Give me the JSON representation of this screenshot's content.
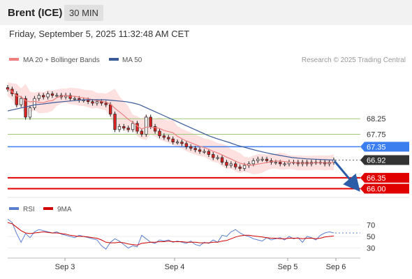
{
  "header": {
    "instrument": "Brent (ICE)",
    "timeframe": "30 MIN"
  },
  "timestamp": "Friday, September 5, 2025 11:32:48 AM CET",
  "legend": {
    "ma20": "MA 20 + Bollinger Bands",
    "ma50": "MA 50",
    "ma20_color": "#f08080",
    "ma50_color": "#3a5a9a",
    "rsi": "RSI",
    "rsi9": "9MA",
    "rsi_color": "#5a7fd0",
    "rsi9_color": "#d00000"
  },
  "research": "Research © 2025 Trading Central",
  "chart_data": {
    "type": "line",
    "price_levels": [
      {
        "label": "68.25",
        "value": 68.25,
        "kind": "thin",
        "color": "#a0c878"
      },
      {
        "label": "67.75",
        "value": 67.75,
        "kind": "thin",
        "color": "#a0c878"
      },
      {
        "label": "67.35",
        "value": 67.35,
        "kind": "pivot",
        "color": "#3a7ef0"
      },
      {
        "label": "66.92",
        "value": 66.92,
        "kind": "last",
        "color": "#333333"
      },
      {
        "label": "66.35",
        "value": 66.35,
        "kind": "target",
        "color": "#e00000"
      },
      {
        "label": "66.00",
        "value": 66.0,
        "kind": "target",
        "color": "#e00000"
      }
    ],
    "price_range": [
      65.9,
      69.6
    ],
    "x_labels": [
      "Sep 3",
      "Sep 4",
      "Sep 5",
      "Sep 6"
    ],
    "close_series": [
      69.2,
      69.05,
      68.7,
      68.9,
      68.3,
      68.6,
      68.9,
      69.0,
      68.95,
      69.05,
      69.0,
      69.0,
      68.95,
      69.0,
      68.9,
      68.9,
      68.85,
      68.85,
      68.8,
      68.75,
      68.8,
      68.75,
      68.7,
      68.4,
      67.9,
      68.0,
      67.95,
      67.9,
      68.1,
      67.85,
      67.75,
      68.3,
      68.0,
      67.85,
      67.7,
      67.65,
      67.6,
      67.5,
      67.5,
      67.45,
      67.35,
      67.3,
      67.25,
      67.2,
      67.2,
      67.1,
      67.0,
      67.0,
      66.85,
      66.75,
      66.8,
      66.7,
      66.65,
      66.75,
      66.8,
      66.9,
      66.95,
      66.95,
      66.9,
      66.85,
      66.85,
      66.8,
      66.8,
      66.85,
      66.85,
      66.8,
      66.85,
      66.8,
      66.85,
      66.85,
      66.85,
      66.8,
      66.85,
      66.92
    ],
    "ma50_series": [
      68.5,
      68.55,
      68.6,
      68.65,
      68.7,
      68.72,
      68.75,
      68.78,
      68.8,
      68.82,
      68.84,
      68.86,
      68.86,
      68.86,
      68.86,
      68.84,
      68.82,
      68.8,
      68.76,
      68.7,
      68.6,
      68.5,
      68.4,
      68.3,
      68.2,
      68.1,
      68.0,
      67.9,
      67.8,
      67.7,
      67.62,
      67.55,
      67.48,
      67.4,
      67.34,
      67.28,
      67.22,
      67.17,
      67.12,
      67.08,
      67.04,
      67.0,
      66.98,
      66.96,
      66.95,
      66.94,
      66.93,
      66.92
    ],
    "forecast_arrow": {
      "from": 66.92,
      "to": 66.05
    },
    "rsi_levels": [
      {
        "label": "70",
        "value": 70
      },
      {
        "label": "50",
        "value": 50
      },
      {
        "label": "30",
        "value": 30
      }
    ],
    "rsi_range": [
      15,
      85
    ],
    "rsi_series": [
      80,
      74,
      55,
      40,
      55,
      48,
      58,
      62,
      60,
      58,
      56,
      58,
      54,
      52,
      50,
      48,
      52,
      50,
      48,
      46,
      44,
      34,
      28,
      40,
      46,
      42,
      36,
      30,
      34,
      32,
      52,
      46,
      40,
      38,
      44,
      42,
      44,
      40,
      42,
      40,
      38,
      42,
      36,
      34,
      40,
      38,
      44,
      40,
      52,
      50,
      58,
      62,
      56,
      52,
      50,
      46,
      44,
      42,
      48,
      44,
      46,
      48,
      44,
      50,
      46,
      48,
      40,
      50,
      48,
      44,
      52,
      56,
      58,
      56
    ],
    "rsi9_series": [
      74,
      72,
      66,
      60,
      56,
      55,
      56,
      57,
      58,
      57,
      56,
      56,
      55,
      54,
      52,
      51,
      50,
      50,
      49,
      48,
      47,
      44,
      40,
      39,
      39,
      40,
      39,
      37,
      36,
      35,
      38,
      39,
      40,
      40,
      41,
      41,
      42,
      41,
      41,
      41,
      40,
      40,
      40,
      39,
      39,
      39,
      40,
      40,
      42,
      43,
      46,
      49,
      51,
      52,
      52,
      51,
      50,
      49,
      48,
      47,
      47,
      46,
      46,
      47,
      47,
      47,
      46,
      47,
      47,
      46,
      47,
      49,
      50,
      51
    ]
  }
}
